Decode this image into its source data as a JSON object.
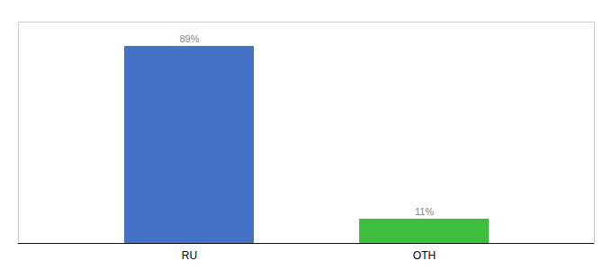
{
  "chart_data": {
    "type": "bar",
    "categories": [
      "RU",
      "OTH"
    ],
    "values": [
      89,
      11
    ],
    "value_labels": [
      "89%",
      "11%"
    ],
    "colors": [
      "#4472c4",
      "#3dbf3d"
    ],
    "ylim": [
      0,
      100
    ],
    "data_labels": true,
    "tick_labels": "x",
    "grid": false
  }
}
